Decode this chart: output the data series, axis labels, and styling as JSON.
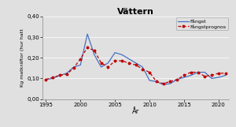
{
  "title": "Vättern",
  "xlabel": "År",
  "ylabel": "Kg matkräftor (hur hatt",
  "xlim": [
    1994.5,
    2021.5
  ],
  "ylim": [
    0.0,
    0.4
  ],
  "yticks": [
    0.0,
    0.1,
    0.2,
    0.3,
    0.4
  ],
  "xticks": [
    1995,
    2000,
    2005,
    2010,
    2015,
    2020
  ],
  "years": [
    1995,
    1996,
    1997,
    1998,
    1999,
    2000,
    2001,
    2002,
    2003,
    2004,
    2005,
    2006,
    2007,
    2008,
    2009,
    2010,
    2011,
    2012,
    2013,
    2014,
    2015,
    2016,
    2017,
    2018,
    2019,
    2020,
    2021
  ],
  "fangst": [
    0.095,
    0.1,
    0.115,
    0.125,
    0.155,
    0.165,
    0.315,
    0.215,
    0.155,
    0.175,
    0.225,
    0.215,
    0.195,
    0.175,
    0.155,
    0.09,
    0.085,
    0.07,
    0.075,
    0.095,
    0.105,
    0.115,
    0.13,
    0.13,
    0.1,
    0.105,
    0.115
  ],
  "fangstprognos": [
    0.095,
    0.105,
    0.115,
    0.12,
    0.15,
    0.195,
    0.25,
    0.235,
    0.175,
    0.155,
    0.185,
    0.185,
    0.175,
    0.165,
    0.145,
    0.13,
    0.085,
    0.075,
    0.085,
    0.095,
    0.115,
    0.13,
    0.13,
    0.11,
    0.115,
    0.125,
    0.125
  ],
  "fangst_color": "#4472C4",
  "fangstprognos_color": "#C00000",
  "background_color": "#E0E0E0",
  "legend_fangst": "Fångst",
  "legend_prognos": "Fångstprognos"
}
